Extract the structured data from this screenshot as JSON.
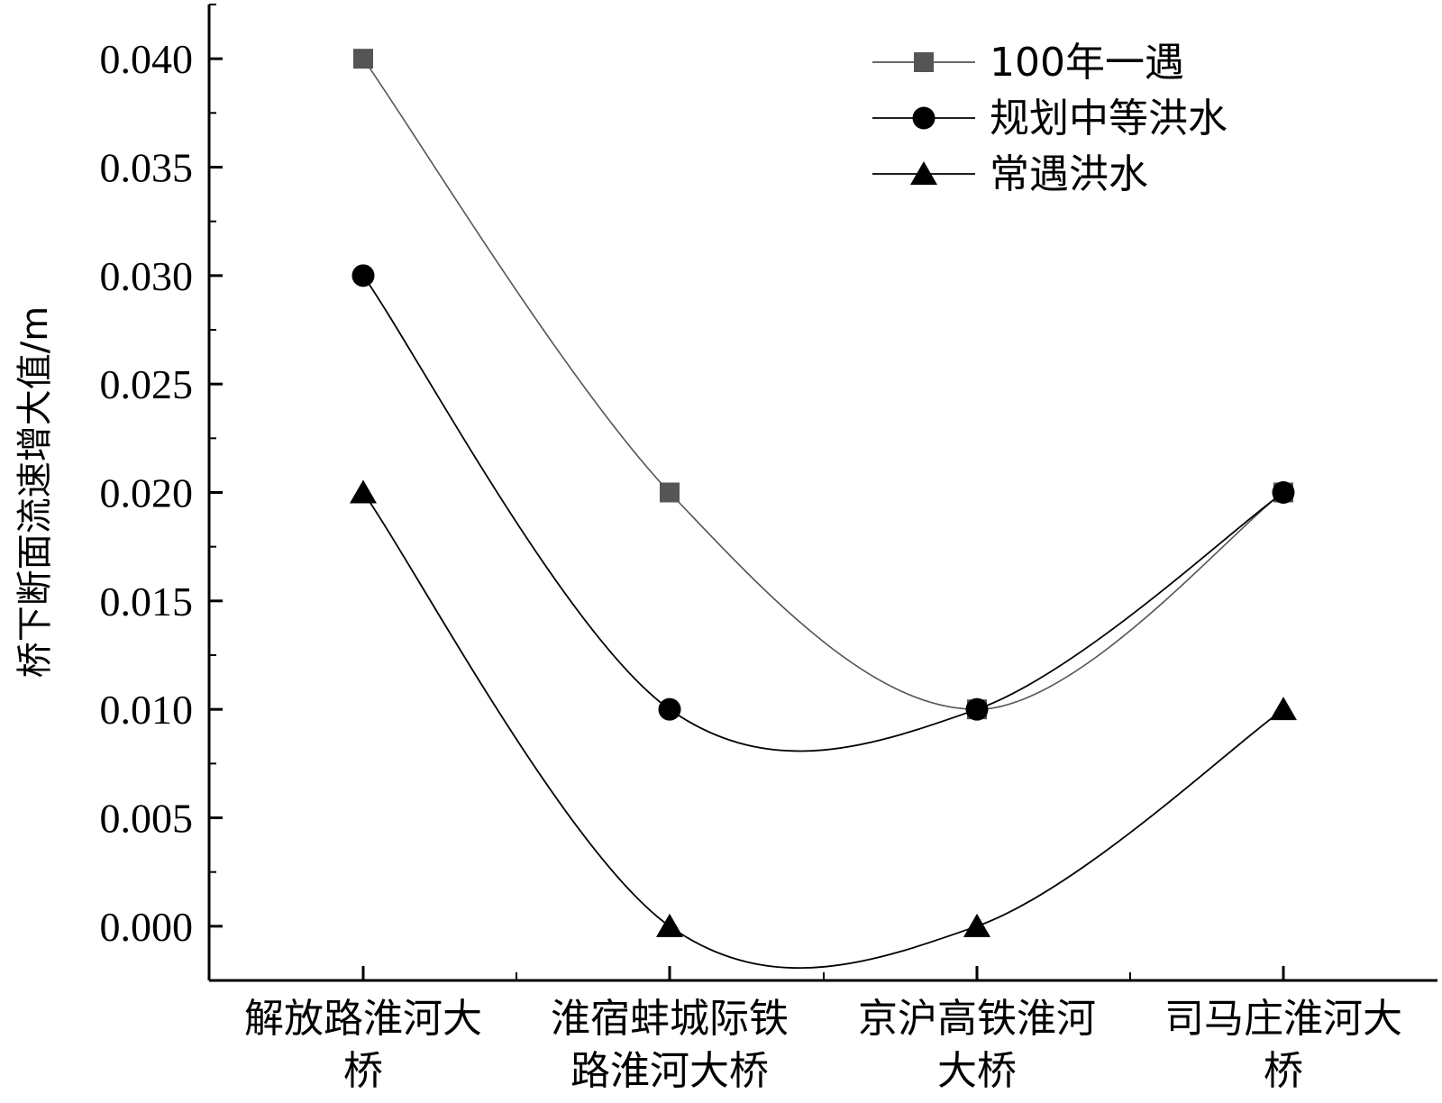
{
  "chart_data": {
    "type": "line",
    "title": "",
    "xlabel": "",
    "ylabel": "桥下断面流速增大值/m",
    "categories": [
      [
        "解放路淮河大",
        "桥"
      ],
      [
        "淮宿蚌城际铁",
        "路淮河大桥"
      ],
      [
        "京沪高铁淮河",
        "大桥"
      ],
      [
        "司马庄淮河大",
        "桥"
      ]
    ],
    "ylim": [
      -0.0025,
      0.0425
    ],
    "yticks": [
      "0.000",
      "0.005",
      "0.010",
      "0.015",
      "0.020",
      "0.025",
      "0.030",
      "0.035",
      "0.040"
    ],
    "series": [
      {
        "name": "100年一遇",
        "marker": "square",
        "color": "#555555",
        "values": [
          0.04,
          0.02,
          0.01,
          0.02
        ]
      },
      {
        "name": "规划中等洪水",
        "marker": "circle",
        "color": "#000000",
        "values": [
          0.03,
          0.01,
          0.01,
          0.02
        ]
      },
      {
        "name": "常遇洪水",
        "marker": "triangle",
        "color": "#000000",
        "values": [
          0.02,
          0.0,
          0.0,
          0.01
        ]
      }
    ],
    "legend": "top-right",
    "grid": false,
    "smooth": true
  }
}
